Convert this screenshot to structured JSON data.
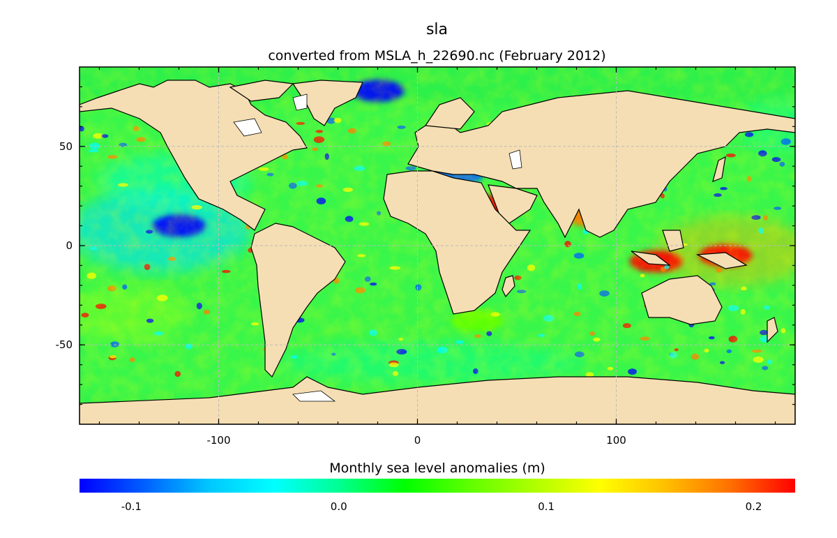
{
  "title": "sla",
  "subtitle": "converted from MSLA_h_22690.nc (February 2012)",
  "colorbar": {
    "label": "Monthly sea level anomalies (m)",
    "min": -0.125,
    "max": 0.22,
    "ticks": [
      {
        "value": -0.1,
        "label": "-0.1"
      },
      {
        "value": 0.0,
        "label": "0.0"
      },
      {
        "value": 0.1,
        "label": "0.1"
      },
      {
        "value": 0.2,
        "label": "0.2"
      }
    ],
    "colors": [
      "#0000ff",
      "#0060ff",
      "#00c8ff",
      "#00ffff",
      "#00ff90",
      "#00ff00",
      "#60ff00",
      "#b0ff00",
      "#ffff00",
      "#ffc000",
      "#ff7000",
      "#ff0000"
    ]
  },
  "map": {
    "projection": "equirectangular",
    "lon_range": [
      -170,
      190
    ],
    "lat_range": [
      -90,
      90
    ],
    "x_ticks": [
      {
        "value": -100,
        "label": "-100"
      },
      {
        "value": 0,
        "label": "0"
      },
      {
        "value": 100,
        "label": "100"
      }
    ],
    "y_ticks": [
      {
        "value": 50,
        "label": "50"
      },
      {
        "value": 0,
        "label": "0"
      },
      {
        "value": -50,
        "label": "-50"
      }
    ],
    "land_color": "#f5deb3",
    "grid": "dashed",
    "anomaly_regions": [
      {
        "name": "north-pacific-tropics-negative",
        "lon": -120,
        "lat": 10,
        "value": -0.12
      },
      {
        "name": "western-pacific-warm-pool-positive",
        "lon": 155,
        "lat": -5,
        "value": 0.21
      },
      {
        "name": "indonesia-positive",
        "lon": 120,
        "lat": -8,
        "value": 0.22
      },
      {
        "name": "red-sea-positive",
        "lon": 40,
        "lat": 20,
        "value": 0.22
      },
      {
        "name": "bay-of-bengal-positive",
        "lon": 88,
        "lat": 15,
        "value": 0.2
      },
      {
        "name": "mediterranean-negative",
        "lon": 20,
        "lat": 36,
        "value": -0.1
      },
      {
        "name": "agulhas-mixed",
        "lon": 30,
        "lat": -38,
        "value": 0.05
      },
      {
        "name": "arctic-negative",
        "lon": -20,
        "lat": 78,
        "value": -0.11
      }
    ]
  }
}
